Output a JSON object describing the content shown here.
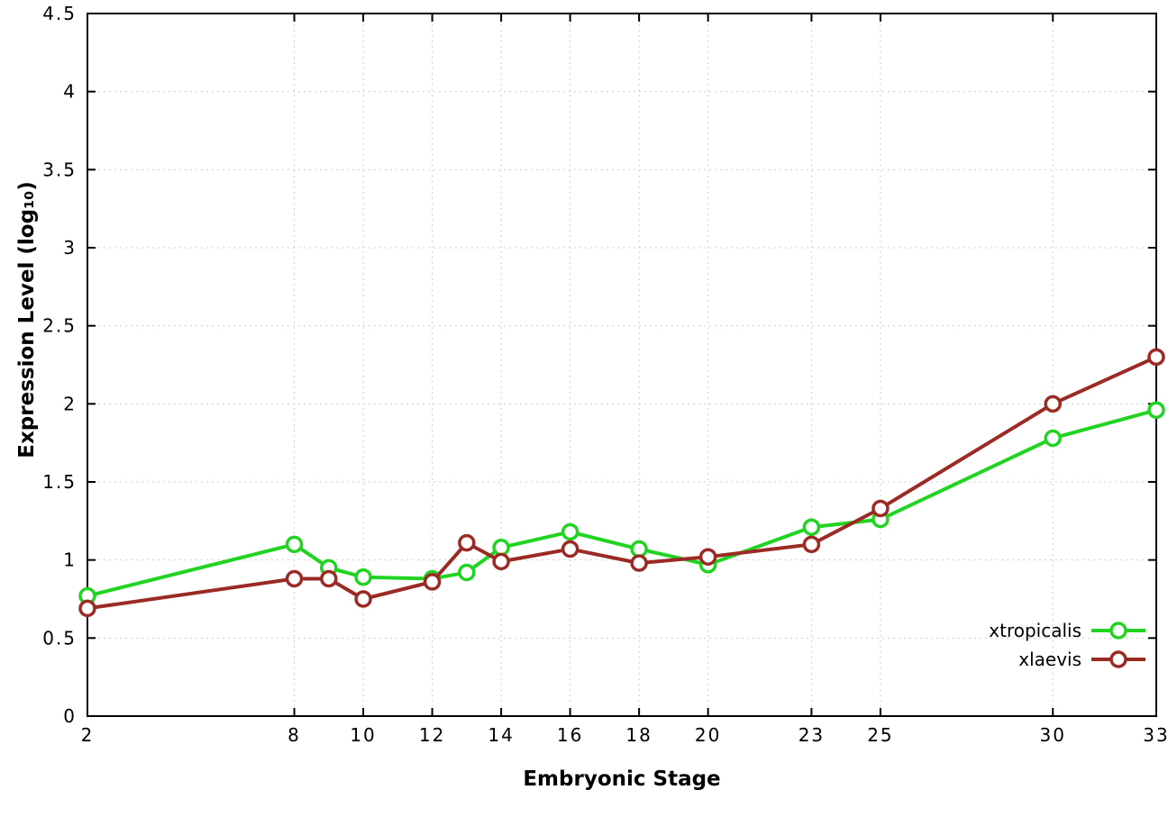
{
  "chart_data": {
    "type": "line",
    "title": "",
    "xlabel": "Embryonic Stage",
    "ylabel": "Expression Level (log₁₀)",
    "xlim": [
      2,
      33
    ],
    "ylim": [
      0,
      4.5
    ],
    "xticks": [
      2,
      8,
      10,
      12,
      14,
      16,
      18,
      20,
      23,
      25,
      30,
      33
    ],
    "yticks": [
      0,
      0.5,
      1,
      1.5,
      2,
      2.5,
      3,
      3.5,
      4,
      4.5
    ],
    "grid": true,
    "grid_color": "#cfcfcf",
    "border_color": "#000000",
    "legend_position": "bottom-right",
    "x": [
      2,
      8,
      9,
      10,
      12,
      13,
      14,
      16,
      18,
      20,
      23,
      25,
      30,
      33
    ],
    "series": [
      {
        "name": "xtropicalis",
        "color": "#22d422",
        "values": [
          0.77,
          1.1,
          0.95,
          0.89,
          0.88,
          0.92,
          1.08,
          1.18,
          1.07,
          0.97,
          1.21,
          1.26,
          1.78,
          1.96
        ]
      },
      {
        "name": "xlaevis",
        "color": "#9c2a24",
        "values": [
          0.69,
          0.88,
          0.88,
          0.75,
          0.86,
          1.11,
          0.99,
          1.07,
          0.98,
          1.02,
          1.1,
          1.33,
          2.0,
          2.3
        ]
      }
    ]
  }
}
